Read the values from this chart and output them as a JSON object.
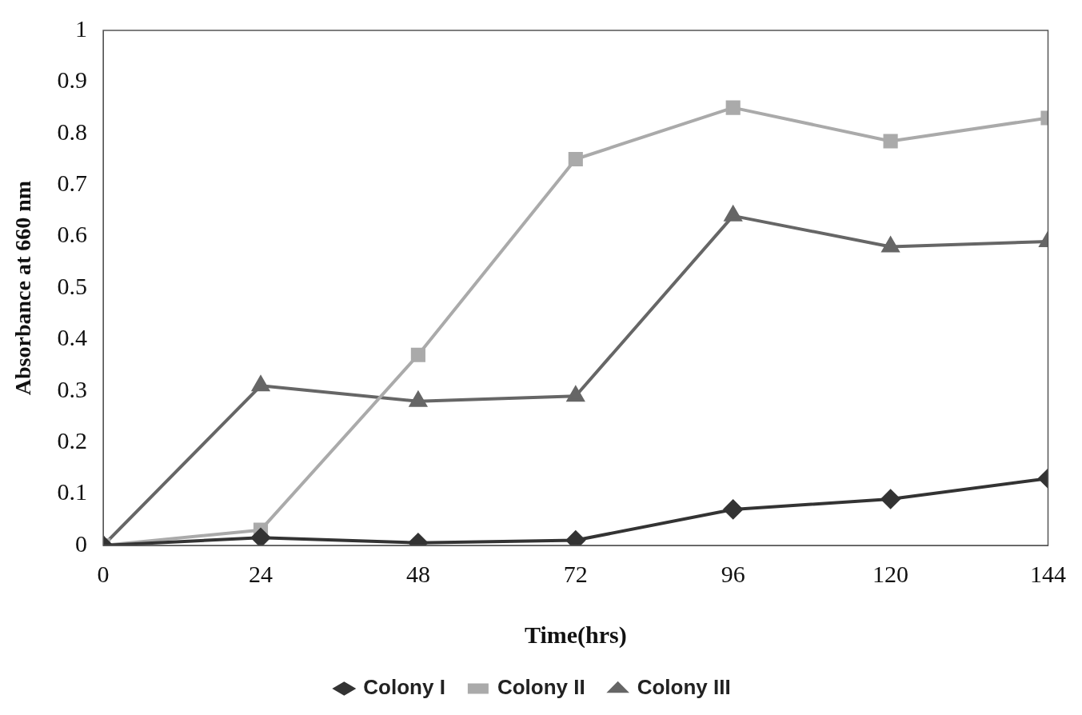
{
  "chart_data": {
    "type": "line",
    "xlabel": "Time(hrs)",
    "ylabel": "Absorbance at 660 nm",
    "x": [
      0,
      24,
      48,
      72,
      96,
      120,
      144
    ],
    "xlim": [
      0,
      144
    ],
    "xticks": [
      0,
      24,
      48,
      72,
      96,
      120,
      144
    ],
    "ylim": [
      0,
      1
    ],
    "yticks": [
      0,
      0.1,
      0.2,
      0.3,
      0.4,
      0.5,
      0.6,
      0.7,
      0.8,
      0.9,
      1
    ],
    "grid": false,
    "legend": "bottom",
    "line_style": "solid",
    "series": [
      {
        "name": "Colony I",
        "color": "#333333",
        "marker": "diamond",
        "values": [
          0,
          0.015,
          0.005,
          0.01,
          0.07,
          0.09,
          0.13
        ]
      },
      {
        "name": "Colony II",
        "color": "#aaaaaa",
        "marker": "square",
        "values": [
          0,
          0.03,
          0.37,
          0.75,
          0.85,
          0.785,
          0.83
        ]
      },
      {
        "name": "Colony III",
        "color": "#666666",
        "marker": "triangle",
        "values": [
          0,
          0.31,
          0.28,
          0.29,
          0.64,
          0.58,
          0.59
        ]
      }
    ]
  }
}
